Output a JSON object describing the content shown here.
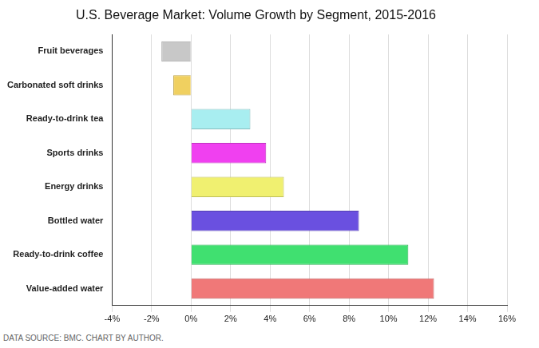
{
  "chart_data": {
    "type": "bar",
    "title": "U.S. Beverage Market: Volume Growth by Segment, 2015-2016",
    "source": "DATA SOURCE: BMC. CHART BY AUTHOR.",
    "orientation": "horizontal",
    "categories": [
      "Fruit beverages",
      "Carbonated soft drinks",
      "Ready-to-drink tea",
      "Sports drinks",
      "Energy drinks",
      "Bottled water",
      "Ready-to-drink coffee",
      "Value-added water"
    ],
    "values": [
      -1.5,
      -0.9,
      3.0,
      3.8,
      4.7,
      8.5,
      11.0,
      12.3
    ],
    "colors": [
      "#c8c8c8",
      "#f0d060",
      "#a8eef0",
      "#f040f0",
      "#f0f070",
      "#6a50e0",
      "#40e070",
      "#f07878"
    ],
    "xlim": [
      -4,
      16
    ],
    "xticks": [
      {
        "value": -4,
        "label": "-4%"
      },
      {
        "value": -2,
        "label": "-2%"
      },
      {
        "value": 0,
        "label": "0%"
      },
      {
        "value": 2,
        "label": "2%"
      },
      {
        "value": 4,
        "label": "4%"
      },
      {
        "value": 6,
        "label": "6%"
      },
      {
        "value": 8,
        "label": "8%"
      },
      {
        "value": 10,
        "label": "10%"
      },
      {
        "value": 12,
        "label": "12%"
      },
      {
        "value": 14,
        "label": "14%"
      },
      {
        "value": 16,
        "label": "16%"
      }
    ],
    "grid": true
  }
}
